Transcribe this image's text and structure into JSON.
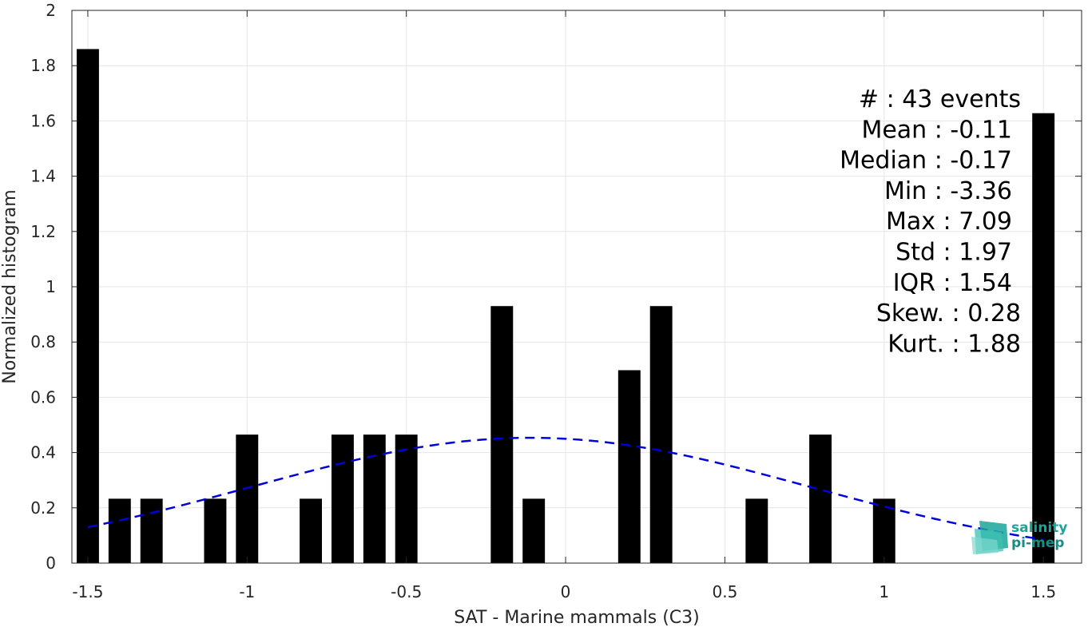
{
  "chart_data": {
    "type": "bar",
    "xlabel": "SAT - Marine mammals (C3)",
    "ylabel": "Normalized histogram",
    "xlim": [
      -1.55,
      1.62
    ],
    "ylim": [
      0,
      2
    ],
    "xticks": [
      -1.5,
      -1,
      -0.5,
      0,
      0.5,
      1,
      1.5
    ],
    "xtick_labels": [
      "-1.5",
      "-1",
      "-0.5",
      "0",
      "0.5",
      "1",
      "1.5"
    ],
    "yticks": [
      0,
      0.2,
      0.4,
      0.6,
      0.8,
      1,
      1.2,
      1.4,
      1.6,
      1.8,
      2
    ],
    "ytick_labels": [
      "0",
      "0.2",
      "0.4",
      "0.6",
      "0.8",
      "1",
      "1.2",
      "1.4",
      "1.6",
      "1.8",
      "2"
    ],
    "grid": true,
    "bar_color": "#000000",
    "bar_width": 0.07,
    "bars": [
      {
        "x": -1.5,
        "value": 1.86
      },
      {
        "x": -1.4,
        "value": 0.233
      },
      {
        "x": -1.3,
        "value": 0.233
      },
      {
        "x": -1.1,
        "value": 0.233
      },
      {
        "x": -1.0,
        "value": 0.465
      },
      {
        "x": -0.8,
        "value": 0.233
      },
      {
        "x": -0.7,
        "value": 0.465
      },
      {
        "x": -0.6,
        "value": 0.465
      },
      {
        "x": -0.5,
        "value": 0.465
      },
      {
        "x": -0.2,
        "value": 0.93
      },
      {
        "x": -0.1,
        "value": 0.233
      },
      {
        "x": 0.2,
        "value": 0.698
      },
      {
        "x": 0.3,
        "value": 0.93
      },
      {
        "x": 0.6,
        "value": 0.233
      },
      {
        "x": 0.8,
        "value": 0.465
      },
      {
        "x": 1.0,
        "value": 0.233
      },
      {
        "x": 1.5,
        "value": 1.628
      }
    ],
    "fit_curve": {
      "style": "dashed",
      "color": "#0000dd",
      "mean": -0.11,
      "std": 0.88,
      "x_range": [
        -1.5,
        1.5
      ]
    },
    "stats": [
      "#  : 43 events",
      "Mean : -0.11",
      "Median : -0.17",
      "Min : -3.36",
      "Max : 7.09",
      "Std : 1.97",
      "IQR : 1.54",
      "Skew. : 0.28",
      "Kurt. : 1.88"
    ]
  },
  "logo": {
    "line1": "salinity",
    "line2": "pi-mep",
    "color": "#1aa59a"
  }
}
